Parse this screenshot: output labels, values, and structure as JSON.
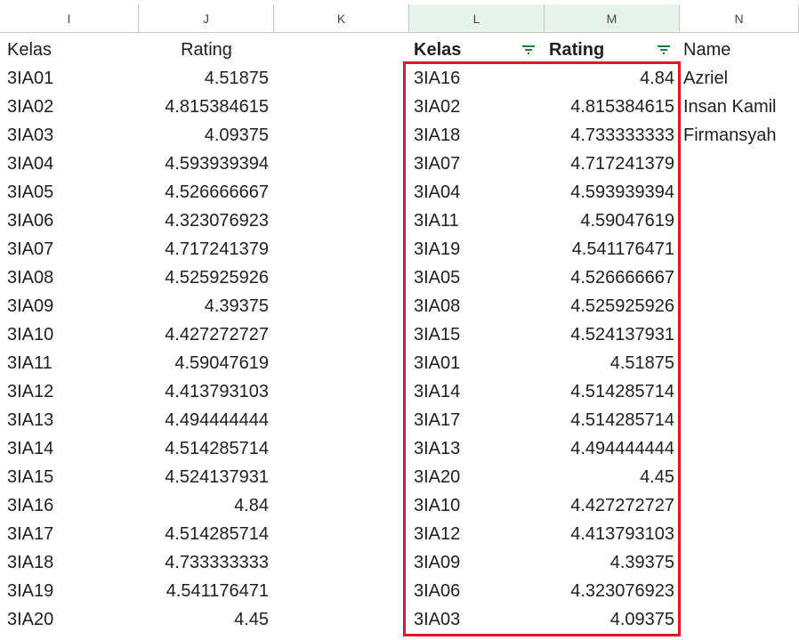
{
  "columns": [
    "I",
    "J",
    "K",
    "L",
    "M",
    "N"
  ],
  "left_table": {
    "header": {
      "kelas": "Kelas",
      "rating": "Rating"
    },
    "rows": [
      {
        "kelas": "3IA01",
        "rating": "4.51875"
      },
      {
        "kelas": "3IA02",
        "rating": "4.815384615"
      },
      {
        "kelas": "3IA03",
        "rating": "4.09375"
      },
      {
        "kelas": "3IA04",
        "rating": "4.593939394"
      },
      {
        "kelas": "3IA05",
        "rating": "4.526666667"
      },
      {
        "kelas": "3IA06",
        "rating": "4.323076923"
      },
      {
        "kelas": "3IA07",
        "rating": "4.717241379"
      },
      {
        "kelas": "3IA08",
        "rating": "4.525925926"
      },
      {
        "kelas": "3IA09",
        "rating": "4.39375"
      },
      {
        "kelas": "3IA10",
        "rating": "4.427272727"
      },
      {
        "kelas": "3IA11",
        "rating": "4.59047619"
      },
      {
        "kelas": "3IA12",
        "rating": "4.413793103"
      },
      {
        "kelas": "3IA13",
        "rating": "4.494444444"
      },
      {
        "kelas": "3IA14",
        "rating": "4.514285714"
      },
      {
        "kelas": "3IA15",
        "rating": "4.524137931"
      },
      {
        "kelas": "3IA16",
        "rating": "4.84"
      },
      {
        "kelas": "3IA17",
        "rating": "4.514285714"
      },
      {
        "kelas": "3IA18",
        "rating": "4.733333333"
      },
      {
        "kelas": "3IA19",
        "rating": "4.541176471"
      },
      {
        "kelas": "3IA20",
        "rating": "4.45"
      }
    ]
  },
  "right_table": {
    "header": {
      "kelas": "Kelas",
      "rating": "Rating",
      "name": "Name"
    },
    "rows": [
      {
        "kelas": "3IA16",
        "rating": "4.84",
        "name": "Azriel"
      },
      {
        "kelas": "3IA02",
        "rating": "4.815384615",
        "name": "Insan Kamil"
      },
      {
        "kelas": "3IA18",
        "rating": "4.733333333",
        "name": "Firmansyah"
      },
      {
        "kelas": "3IA07",
        "rating": "4.717241379",
        "name": ""
      },
      {
        "kelas": "3IA04",
        "rating": "4.593939394",
        "name": ""
      },
      {
        "kelas": "3IA11",
        "rating": "4.59047619",
        "name": ""
      },
      {
        "kelas": "3IA19",
        "rating": "4.541176471",
        "name": ""
      },
      {
        "kelas": "3IA05",
        "rating": "4.526666667",
        "name": ""
      },
      {
        "kelas": "3IA08",
        "rating": "4.525925926",
        "name": ""
      },
      {
        "kelas": "3IA15",
        "rating": "4.524137931",
        "name": ""
      },
      {
        "kelas": "3IA01",
        "rating": "4.51875",
        "name": ""
      },
      {
        "kelas": "3IA14",
        "rating": "4.514285714",
        "name": ""
      },
      {
        "kelas": "3IA17",
        "rating": "4.514285714",
        "name": ""
      },
      {
        "kelas": "3IA13",
        "rating": "4.494444444",
        "name": ""
      },
      {
        "kelas": "3IA20",
        "rating": "4.45",
        "name": ""
      },
      {
        "kelas": "3IA10",
        "rating": "4.427272727",
        "name": ""
      },
      {
        "kelas": "3IA12",
        "rating": "4.413793103",
        "name": ""
      },
      {
        "kelas": "3IA09",
        "rating": "4.39375",
        "name": ""
      },
      {
        "kelas": "3IA06",
        "rating": "4.323076923",
        "name": ""
      },
      {
        "kelas": "3IA03",
        "rating": "4.09375",
        "name": ""
      }
    ]
  },
  "colors": {
    "highlight_border": "#e0191f",
    "selected_header_bg": "#e6f4ea",
    "filter_icon": "#188038"
  }
}
